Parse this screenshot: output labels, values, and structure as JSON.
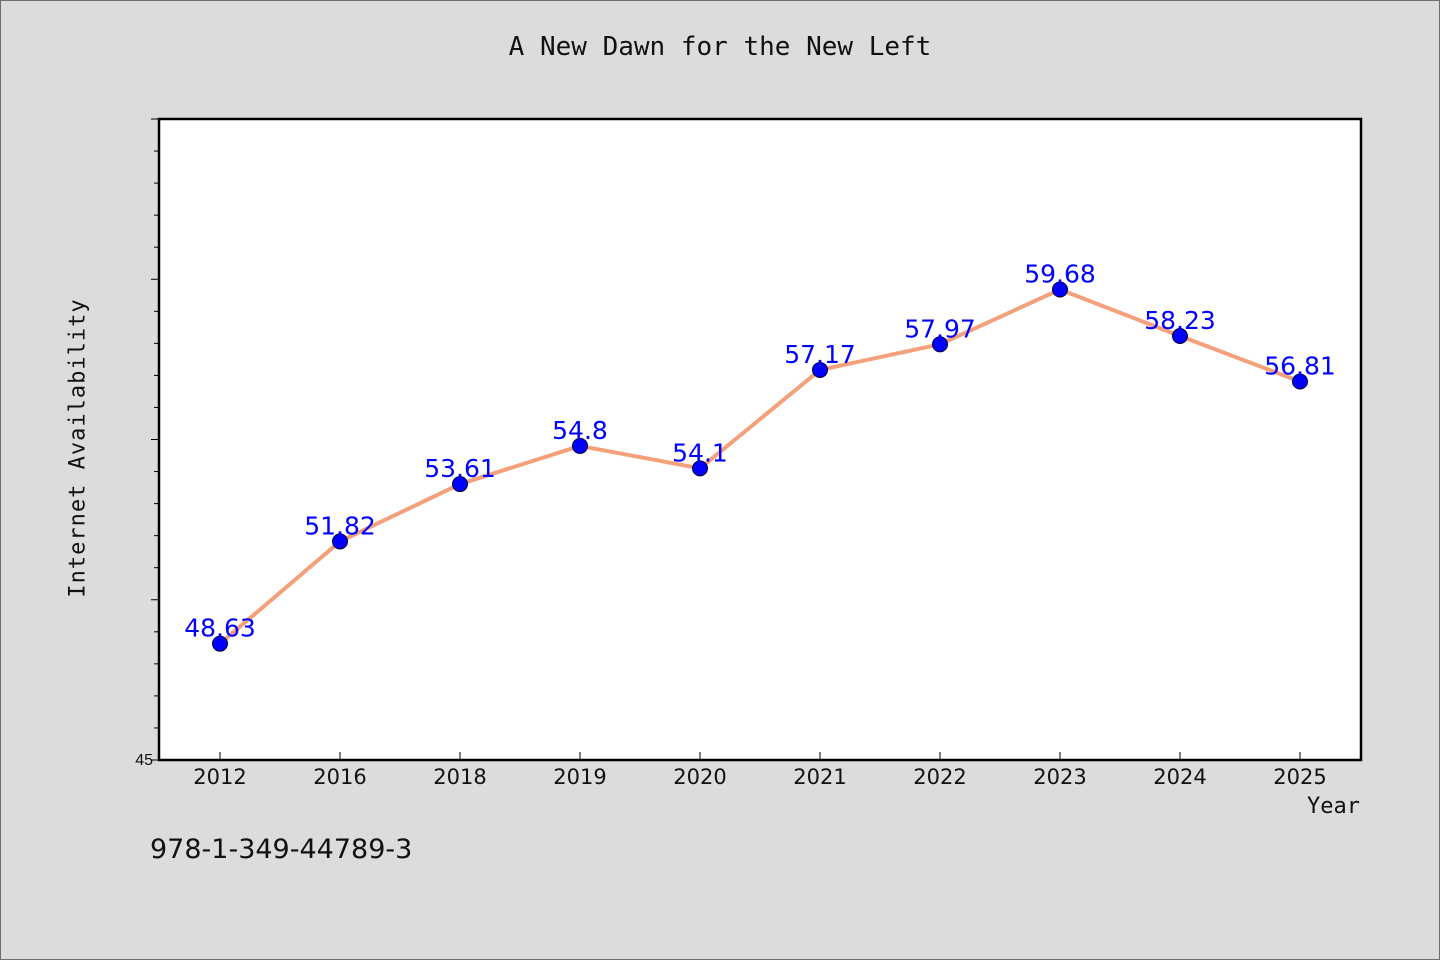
{
  "chart_data": {
    "type": "line",
    "title": "A New Dawn for the New Left",
    "xlabel": "Year",
    "ylabel": "Internet Availability",
    "categories": [
      "2012",
      "2016",
      "2018",
      "2019",
      "2020",
      "2021",
      "2022",
      "2023",
      "2024",
      "2025"
    ],
    "series": [
      {
        "values": [
          48.63,
          51.82,
          53.61,
          54.8,
          54.1,
          57.17,
          57.97,
          59.68,
          58.23,
          56.81
        ],
        "data_labels": [
          "48.63",
          "51.82",
          "53.61",
          "54.8",
          "54.1",
          "57.17",
          "57.97",
          "59.68",
          "58.23",
          "56.81"
        ],
        "line_color": "#f4a07a",
        "marker_color": "#0000ff"
      }
    ],
    "ylim": [
      45,
      65
    ],
    "y_tick_labels": [
      "45"
    ],
    "grid": false,
    "legend": "none",
    "label_color": "#0000ff"
  },
  "footer": {
    "isbn": "978-1-349-44789-3"
  }
}
